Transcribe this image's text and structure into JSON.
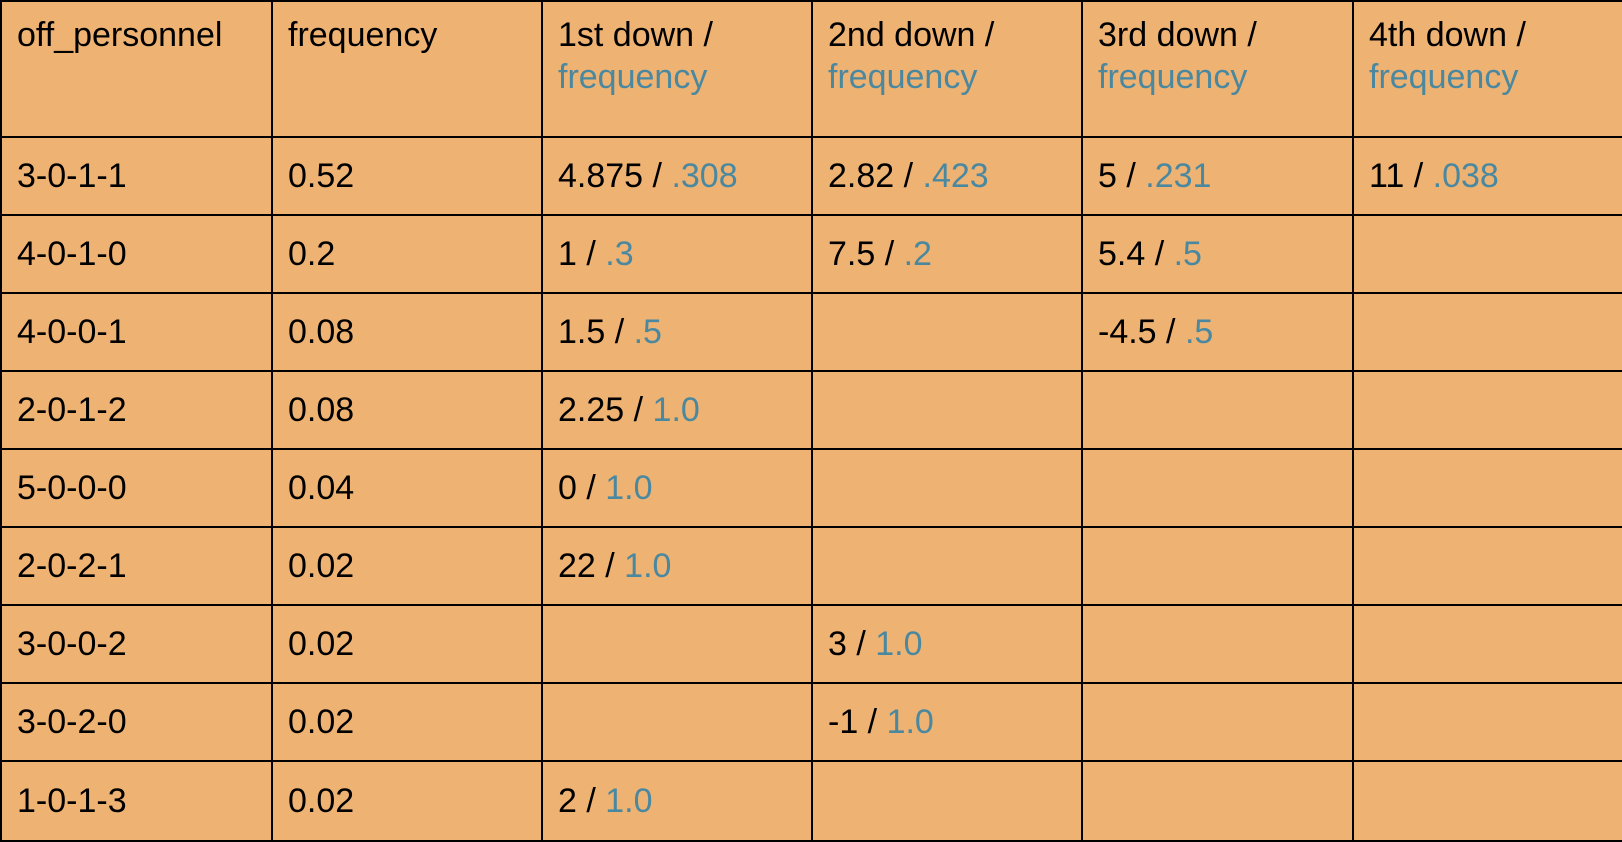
{
  "chart_data": {
    "type": "table",
    "colors": {
      "background": "#eeb273",
      "grid": "#000000",
      "text": "#000000",
      "frequency_text": "#4a88a0"
    },
    "columns": [
      {
        "label": "off_personnel"
      },
      {
        "label": "frequency"
      },
      {
        "label": "1st down /",
        "sub": "frequency"
      },
      {
        "label": "2nd down /",
        "sub": "frequency"
      },
      {
        "label": "3rd down /",
        "sub": "frequency"
      },
      {
        "label": "4th down /",
        "sub": "frequency"
      }
    ],
    "rows": [
      {
        "personnel": "3-0-1-1",
        "frequency": "0.52",
        "downs": [
          {
            "value": "4.875",
            "freq": ".308"
          },
          {
            "value": "2.82",
            "freq": ".423"
          },
          {
            "value": "5",
            "freq": ".231"
          },
          {
            "value": "11",
            "freq": ".038"
          }
        ]
      },
      {
        "personnel": "4-0-1-0",
        "frequency": "0.2",
        "downs": [
          {
            "value": "1",
            "freq": ".3"
          },
          {
            "value": "7.5",
            "freq": ".2"
          },
          {
            "value": "5.4",
            "freq": ".5"
          },
          null
        ]
      },
      {
        "personnel": "4-0-0-1",
        "frequency": "0.08",
        "downs": [
          {
            "value": "1.5",
            "freq": ".5"
          },
          null,
          {
            "value": "-4.5",
            "freq": ".5"
          },
          null
        ]
      },
      {
        "personnel": "2-0-1-2",
        "frequency": "0.08",
        "downs": [
          {
            "value": "2.25",
            "freq": "1.0"
          },
          null,
          null,
          null
        ]
      },
      {
        "personnel": "5-0-0-0",
        "frequency": "0.04",
        "downs": [
          {
            "value": "0",
            "freq": "1.0"
          },
          null,
          null,
          null
        ]
      },
      {
        "personnel": "2-0-2-1",
        "frequency": "0.02",
        "downs": [
          {
            "value": "22",
            "freq": "1.0"
          },
          null,
          null,
          null
        ]
      },
      {
        "personnel": "3-0-0-2",
        "frequency": "0.02",
        "downs": [
          null,
          {
            "value": "3",
            "freq": "1.0"
          },
          null,
          null
        ]
      },
      {
        "personnel": "3-0-2-0",
        "frequency": "0.02",
        "downs": [
          null,
          {
            "value": "-1",
            "freq": "1.0"
          },
          null,
          null
        ]
      },
      {
        "personnel": "1-0-1-3",
        "frequency": "0.02",
        "downs": [
          {
            "value": "2",
            "freq": "1.0"
          },
          null,
          null,
          null
        ]
      }
    ]
  }
}
